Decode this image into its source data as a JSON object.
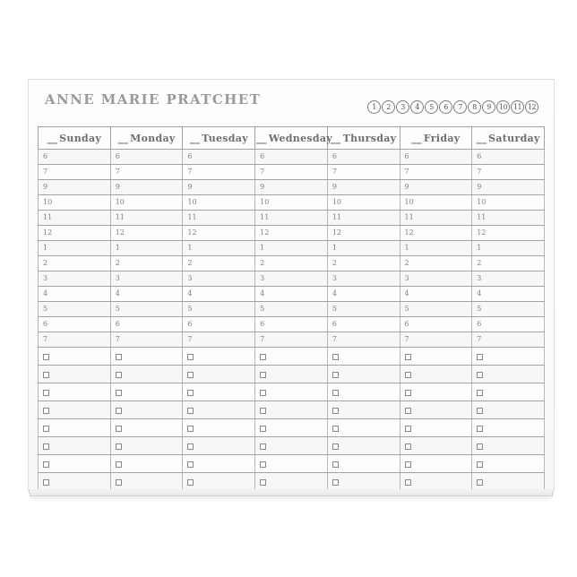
{
  "notepad": {
    "title": "ANNE MARIE PRATCHET"
  },
  "week_circles": {
    "numbers": [
      "1",
      "2",
      "3",
      "4",
      "5",
      "6",
      "7",
      "8",
      "9",
      "10",
      "11",
      "12"
    ]
  },
  "schedule": {
    "day_prefix": "__",
    "days": [
      "Sunday",
      "Monday",
      "Tuesday",
      "Wednesday",
      "Thursday",
      "Friday",
      "Saturday"
    ],
    "hours": [
      "6",
      "7",
      "9",
      "10",
      "11",
      "12",
      "1",
      "2",
      "3",
      "4",
      "5",
      "6",
      "7"
    ],
    "task_row_count": 8
  },
  "colors": {
    "title_text": "#9a9a9a",
    "grid_line": "#a3a3a3",
    "cell_text": "#808080",
    "paper": "#fdfdfd"
  }
}
